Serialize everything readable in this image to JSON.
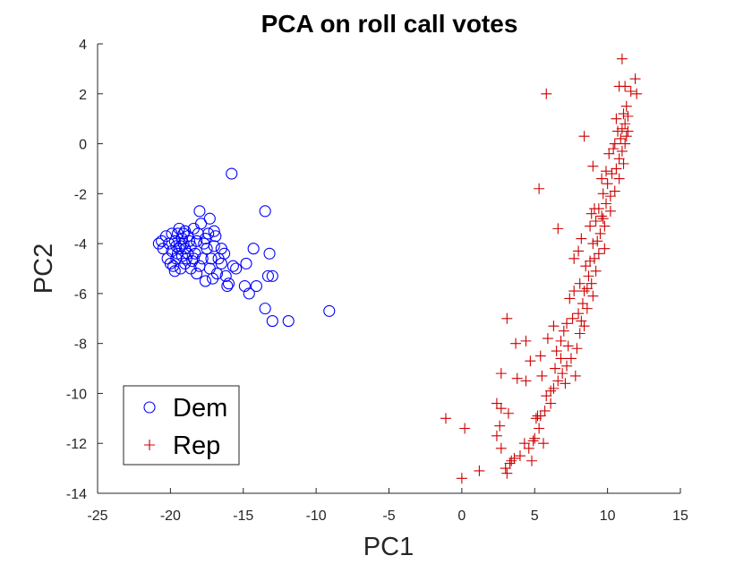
{
  "chart_data": {
    "type": "scatter",
    "title": "PCA on roll call votes",
    "xlabel": "PC1",
    "ylabel": "PC2",
    "xlim": [
      -25,
      15
    ],
    "ylim": [
      -14,
      4
    ],
    "xticks": [
      -25,
      -20,
      -15,
      -10,
      -5,
      0,
      5,
      10,
      15
    ],
    "yticks": [
      -14,
      -12,
      -10,
      -8,
      -6,
      -4,
      -2,
      0,
      2,
      4
    ],
    "grid": false,
    "legend_position": "bottom-left",
    "series": [
      {
        "name": "Dem",
        "marker": "circle",
        "color": "#0000ff",
        "points": [
          [
            -15.8,
            -1.2
          ],
          [
            -13.5,
            -2.7
          ],
          [
            -18.0,
            -2.7
          ],
          [
            -13.2,
            -4.4
          ],
          [
            -14.3,
            -4.2
          ],
          [
            -9.1,
            -6.7
          ],
          [
            -11.9,
            -7.1
          ],
          [
            -13.0,
            -7.1
          ],
          [
            -13.5,
            -6.6
          ],
          [
            -14.6,
            -6.0
          ],
          [
            -14.9,
            -5.7
          ],
          [
            -14.1,
            -5.7
          ],
          [
            -13.3,
            -5.3
          ],
          [
            -13.0,
            -5.3
          ],
          [
            -14.8,
            -4.8
          ],
          [
            -16.1,
            -5.7
          ],
          [
            -16.0,
            -5.6
          ],
          [
            -15.7,
            -4.9
          ],
          [
            -16.5,
            -4.8
          ],
          [
            -16.9,
            -3.7
          ],
          [
            -17.0,
            -3.5
          ],
          [
            -17.3,
            -3.0
          ],
          [
            -16.5,
            -4.2
          ],
          [
            -16.8,
            -5.2
          ],
          [
            -17.1,
            -5.4
          ],
          [
            -17.3,
            -5.0
          ],
          [
            -17.6,
            -5.5
          ],
          [
            -17.2,
            -4.6
          ],
          [
            -17.5,
            -4.2
          ],
          [
            -17.7,
            -4.0
          ],
          [
            -17.9,
            -3.2
          ],
          [
            -18.1,
            -3.6
          ],
          [
            -18.3,
            -4.4
          ],
          [
            -18.0,
            -4.9
          ],
          [
            -18.2,
            -5.2
          ],
          [
            -18.5,
            -4.7
          ],
          [
            -18.6,
            -4.1
          ],
          [
            -18.8,
            -3.7
          ],
          [
            -18.4,
            -3.4
          ],
          [
            -19.0,
            -3.5
          ],
          [
            -19.2,
            -3.8
          ],
          [
            -19.4,
            -4.2
          ],
          [
            -19.6,
            -4.6
          ],
          [
            -19.3,
            -5.0
          ],
          [
            -19.0,
            -4.8
          ],
          [
            -18.8,
            -4.4
          ],
          [
            -19.1,
            -4.0
          ],
          [
            -19.5,
            -3.6
          ],
          [
            -19.7,
            -3.9
          ],
          [
            -19.9,
            -4.3
          ],
          [
            -20.1,
            -4.0
          ],
          [
            -20.3,
            -3.7
          ],
          [
            -20.5,
            -4.2
          ],
          [
            -20.8,
            -4.0
          ],
          [
            -20.2,
            -4.6
          ],
          [
            -19.8,
            -4.9
          ],
          [
            -19.5,
            -4.4
          ],
          [
            -19.3,
            -4.1
          ],
          [
            -19.0,
            -4.2
          ],
          [
            -18.7,
            -3.9
          ],
          [
            -18.9,
            -4.6
          ],
          [
            -19.2,
            -4.5
          ],
          [
            -19.6,
            -4.1
          ],
          [
            -19.9,
            -3.6
          ],
          [
            -20.0,
            -4.8
          ],
          [
            -19.4,
            -3.4
          ],
          [
            -18.6,
            -5.0
          ],
          [
            -17.8,
            -4.6
          ],
          [
            -17.6,
            -3.8
          ],
          [
            -18.2,
            -3.9
          ],
          [
            -16.2,
            -5.3
          ],
          [
            -15.5,
            -5.0
          ],
          [
            -17.0,
            -4.1
          ],
          [
            -16.7,
            -4.6
          ],
          [
            -19.7,
            -5.1
          ],
          [
            -20.6,
            -3.9
          ],
          [
            -19.1,
            -3.6
          ],
          [
            -18.4,
            -4.6
          ],
          [
            -17.4,
            -3.6
          ],
          [
            -16.3,
            -4.4
          ]
        ]
      },
      {
        "name": "Rep",
        "marker": "plus",
        "color": "#cc0000",
        "points": [
          [
            11.0,
            3.4
          ],
          [
            11.9,
            2.6
          ],
          [
            11.2,
            2.3
          ],
          [
            10.8,
            2.3
          ],
          [
            11.6,
            2.1
          ],
          [
            12.0,
            2.0
          ],
          [
            5.8,
            2.0
          ],
          [
            11.3,
            1.5
          ],
          [
            11.1,
            1.2
          ],
          [
            11.4,
            1.1
          ],
          [
            10.6,
            1.0
          ],
          [
            11.2,
            0.8
          ],
          [
            11.0,
            0.6
          ],
          [
            11.4,
            0.5
          ],
          [
            11.3,
            0.3
          ],
          [
            10.9,
            0.2
          ],
          [
            11.2,
            0.0
          ],
          [
            10.5,
            0.0
          ],
          [
            11.0,
            -0.3
          ],
          [
            10.1,
            -0.4
          ],
          [
            10.8,
            -0.6
          ],
          [
            11.1,
            -0.8
          ],
          [
            10.6,
            -1.0
          ],
          [
            10.3,
            -1.2
          ],
          [
            10.8,
            -1.4
          ],
          [
            9.0,
            -0.9
          ],
          [
            8.4,
            0.3
          ],
          [
            10.0,
            -1.6
          ],
          [
            10.5,
            -1.9
          ],
          [
            10.2,
            -2.1
          ],
          [
            9.7,
            -2.0
          ],
          [
            9.9,
            -2.4
          ],
          [
            9.4,
            -2.6
          ],
          [
            9.1,
            -2.6
          ],
          [
            8.9,
            -2.8
          ],
          [
            9.6,
            -2.9
          ],
          [
            9.2,
            -3.1
          ],
          [
            9.8,
            -3.3
          ],
          [
            9.5,
            -3.6
          ],
          [
            9.3,
            -3.9
          ],
          [
            9.0,
            -4.0
          ],
          [
            9.8,
            -4.2
          ],
          [
            9.4,
            -4.4
          ],
          [
            8.8,
            -4.7
          ],
          [
            8.5,
            -4.9
          ],
          [
            9.2,
            -5.1
          ],
          [
            8.7,
            -5.3
          ],
          [
            8.9,
            -5.6
          ],
          [
            8.4,
            -5.9
          ],
          [
            8.1,
            -5.6
          ],
          [
            7.7,
            -5.9
          ],
          [
            7.4,
            -6.2
          ],
          [
            8.3,
            -6.4
          ],
          [
            8.6,
            -6.6
          ],
          [
            8.0,
            -6.8
          ],
          [
            7.6,
            -7.0
          ],
          [
            7.2,
            -7.2
          ],
          [
            8.4,
            -7.3
          ],
          [
            8.1,
            -7.6
          ],
          [
            7.0,
            -7.5
          ],
          [
            6.8,
            -7.9
          ],
          [
            7.9,
            -8.2
          ],
          [
            7.3,
            -8.1
          ],
          [
            6.5,
            -8.3
          ],
          [
            6.8,
            -8.6
          ],
          [
            7.5,
            -8.6
          ],
          [
            7.2,
            -8.9
          ],
          [
            6.4,
            -9.0
          ],
          [
            6.9,
            -9.2
          ],
          [
            6.6,
            -9.5
          ],
          [
            7.8,
            -9.3
          ],
          [
            7.1,
            -9.6
          ],
          [
            6.3,
            -9.8
          ],
          [
            5.8,
            -10.1
          ],
          [
            6.1,
            -10.4
          ],
          [
            5.7,
            -10.7
          ],
          [
            5.4,
            -10.9
          ],
          [
            5.1,
            -11.0
          ],
          [
            5.3,
            -11.4
          ],
          [
            5.0,
            -11.8
          ],
          [
            5.6,
            -12.0
          ],
          [
            4.6,
            -12.2
          ],
          [
            4.3,
            -12.0
          ],
          [
            4.0,
            -12.5
          ],
          [
            3.6,
            -12.6
          ],
          [
            3.3,
            -12.8
          ],
          [
            3.0,
            -13.0
          ],
          [
            3.1,
            -13.2
          ],
          [
            1.2,
            -13.1
          ],
          [
            0.0,
            -13.4
          ],
          [
            0.2,
            -11.4
          ],
          [
            -1.1,
            -11.0
          ],
          [
            2.4,
            -10.4
          ],
          [
            2.7,
            -10.6
          ],
          [
            3.2,
            -10.8
          ],
          [
            2.6,
            -11.3
          ],
          [
            2.4,
            -11.7
          ],
          [
            2.7,
            -12.2
          ],
          [
            3.4,
            -12.7
          ],
          [
            4.8,
            -12.7
          ],
          [
            2.7,
            -9.2
          ],
          [
            3.8,
            -9.4
          ],
          [
            4.4,
            -9.5
          ],
          [
            5.5,
            -9.3
          ],
          [
            5.4,
            -8.5
          ],
          [
            4.7,
            -8.7
          ],
          [
            3.7,
            -8.0
          ],
          [
            4.4,
            -7.9
          ],
          [
            5.9,
            -7.8
          ],
          [
            3.1,
            -7.0
          ],
          [
            5.3,
            -1.8
          ],
          [
            6.6,
            -3.4
          ],
          [
            8.0,
            -4.3
          ],
          [
            8.2,
            -3.8
          ],
          [
            9.0,
            -6.1
          ],
          [
            6.1,
            -9.9
          ],
          [
            5.2,
            -10.9
          ],
          [
            4.9,
            -11.9
          ],
          [
            6.3,
            -7.3
          ],
          [
            7.7,
            -4.6
          ],
          [
            10.4,
            -0.2
          ],
          [
            10.7,
            0.5
          ],
          [
            9.9,
            -1.1
          ],
          [
            9.6,
            -1.4
          ],
          [
            10.2,
            -2.7
          ],
          [
            9.7,
            -3.0
          ],
          [
            8.8,
            -3.3
          ],
          [
            9.1,
            -4.6
          ],
          [
            8.6,
            -5.8
          ],
          [
            8.2,
            -7.1
          ]
        ]
      }
    ]
  }
}
